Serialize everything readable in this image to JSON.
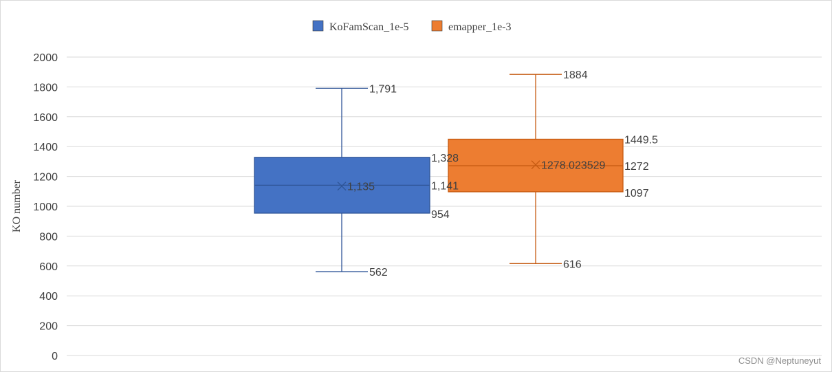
{
  "chart_data": {
    "type": "box",
    "title": "",
    "ylabel": "KO number",
    "ylim": [
      0,
      2000
    ],
    "yticks": [
      0,
      200,
      400,
      600,
      800,
      1000,
      1200,
      1400,
      1600,
      1800,
      2000
    ],
    "grid": true,
    "legend": "top-center",
    "series": [
      {
        "name": "KoFamScan_1e-5",
        "color": "#4472C4",
        "min": 562,
        "q1": 954,
        "median": 1141,
        "q3": 1328,
        "max": 1791,
        "mean": 1135,
        "labels": {
          "min": "562",
          "q1": "954",
          "median": "1,141",
          "q3": "1,328",
          "max": "1,791",
          "mean": "1,135"
        }
      },
      {
        "name": "emapper_1e-3",
        "color": "#ED7D31",
        "min": 616,
        "q1": 1097,
        "median": 1272,
        "q3": 1449.5,
        "max": 1884,
        "mean": 1278.023529,
        "labels": {
          "min": "616",
          "q1": "1097",
          "median": "1272",
          "q3": "1449.5",
          "max": "1884",
          "mean": "1278.023529"
        }
      }
    ]
  },
  "watermark": "CSDN @Neptuneyut"
}
